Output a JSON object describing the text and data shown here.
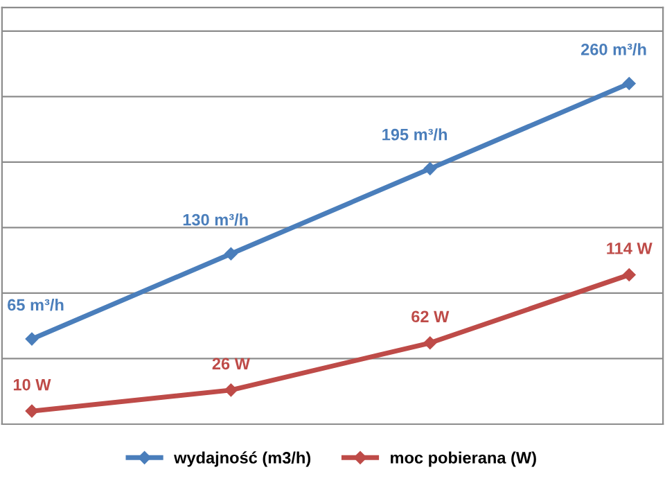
{
  "chart_data": {
    "type": "line",
    "categories": [
      null,
      null,
      null,
      null
    ],
    "series": [
      {
        "name": "wydajność (m3/h)",
        "color": "#4a7ebb",
        "values": [
          65,
          130,
          195,
          260
        ],
        "value_labels": [
          "65 m³/h",
          "130 m³/h",
          "195 m³/h",
          "260 m³/h"
        ]
      },
      {
        "name": "moc pobierana (W)",
        "color": "#be4b48",
        "values": [
          10,
          26,
          62,
          114
        ],
        "value_labels": [
          "10 W",
          "26 W",
          "62 W",
          "114 W"
        ]
      }
    ],
    "ylim": [
      0,
      318
    ],
    "yticks": [
      {
        "value": 0,
        "label": null
      },
      {
        "value": 50,
        "label": null
      },
      {
        "value": 100,
        "label": null
      },
      {
        "value": 150,
        "label": null
      },
      {
        "value": 200,
        "label": null
      },
      {
        "value": 250,
        "label": null
      },
      {
        "value": 300,
        "label": null
      }
    ],
    "grid": "y",
    "legend": "bottom",
    "marker": "diamond",
    "line_style": "solid"
  }
}
